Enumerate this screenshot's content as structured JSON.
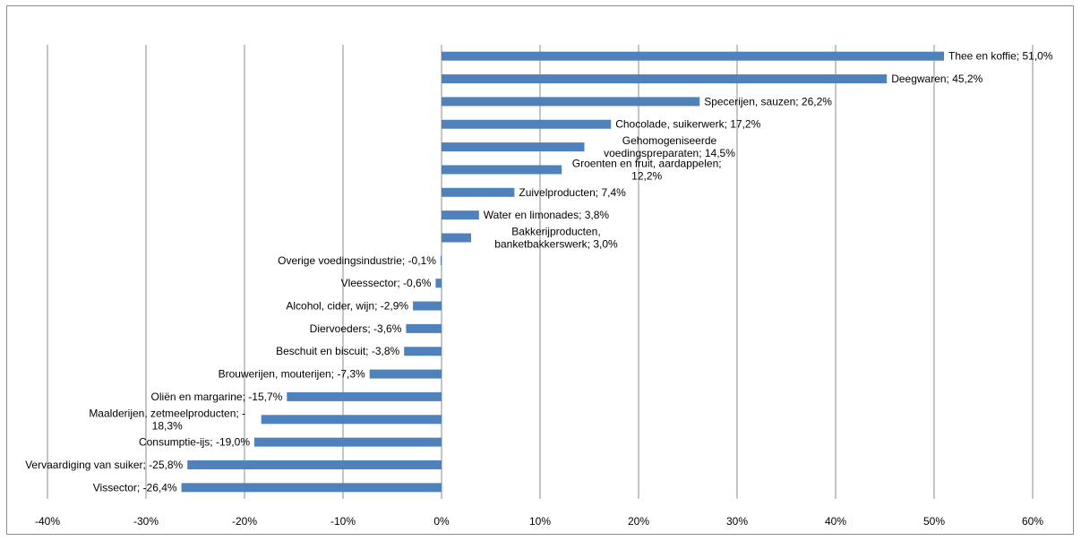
{
  "chart_data": {
    "type": "bar",
    "orientation": "horizontal",
    "title": "",
    "xlabel": "",
    "ylabel": "",
    "xlim": [
      -40,
      60
    ],
    "x_ticks": [
      -40,
      -30,
      -20,
      -10,
      0,
      10,
      20,
      30,
      40,
      50,
      60
    ],
    "x_tick_labels": [
      "-40%",
      "-30%",
      "-20%",
      "-10%",
      "0%",
      "10%",
      "20%",
      "30%",
      "40%",
      "50%",
      "60%"
    ],
    "grid": "vertical",
    "bar_color": "#4f81bd",
    "categories": [
      "Thee en koffie",
      "Deegwaren",
      "Specerijen, sauzen",
      "Chocolade, suikerwerk",
      "Gehomogeniseerde voedingspreparaten",
      "Groenten en fruit, aardappelen",
      "Zuivelproducten",
      "Water en limonades",
      "Bakkerijproducten, banketbakkerswerk",
      "Overige voedingsindustrie",
      "Vleessector",
      "Alcohol, cider, wijn",
      "Diervoeders",
      "Beschuit en biscuit",
      "Brouwerijen, mouterijen",
      "Oliën en margarine",
      "Maalderijen, zetmeelproducten",
      "Consumptie-ijs",
      "Vervaardiging van suiker",
      "Vissector"
    ],
    "values": [
      51.0,
      45.2,
      26.2,
      17.2,
      14.5,
      12.2,
      7.4,
      3.8,
      3.0,
      -0.1,
      -0.6,
      -2.9,
      -3.6,
      -3.8,
      -7.3,
      -15.7,
      -18.3,
      -19.0,
      -25.8,
      -26.4
    ],
    "data_labels": [
      [
        "Thee en koffie; 51,0%"
      ],
      [
        "Deegwaren; 45,2%"
      ],
      [
        "Specerijen, sauzen; 26,2%"
      ],
      [
        "Chocolade, suikerwerk; 17,2%"
      ],
      [
        "Gehomogeniseerde",
        "voedingspreparaten; 14,5%"
      ],
      [
        "Groenten en fruit, aardappelen;",
        "12,2%"
      ],
      [
        "Zuivelproducten; 7,4%"
      ],
      [
        "Water en limonades; 3,8%"
      ],
      [
        "Bakkerijproducten,",
        "banketbakkerswerk; 3,0%"
      ],
      [
        "Overige voedingsindustrie; -0,1%"
      ],
      [
        "Vleessector; -0,6%"
      ],
      [
        "Alcohol, cider, wijn; -2,9%"
      ],
      [
        "Diervoeders; -3,6%"
      ],
      [
        "Beschuit en biscuit; -3,8%"
      ],
      [
        "Brouwerijen, mouterijen; -7,3%"
      ],
      [
        "Oliën en margarine; -15,7%"
      ],
      [
        "Maalderijen, zetmeelproducten; -",
        "18,3%"
      ],
      [
        "Consumptie-ijs; -19,0%"
      ],
      [
        "Vervaardiging van suiker; -25,8%"
      ],
      [
        "Vissector; -26,4%"
      ]
    ]
  }
}
